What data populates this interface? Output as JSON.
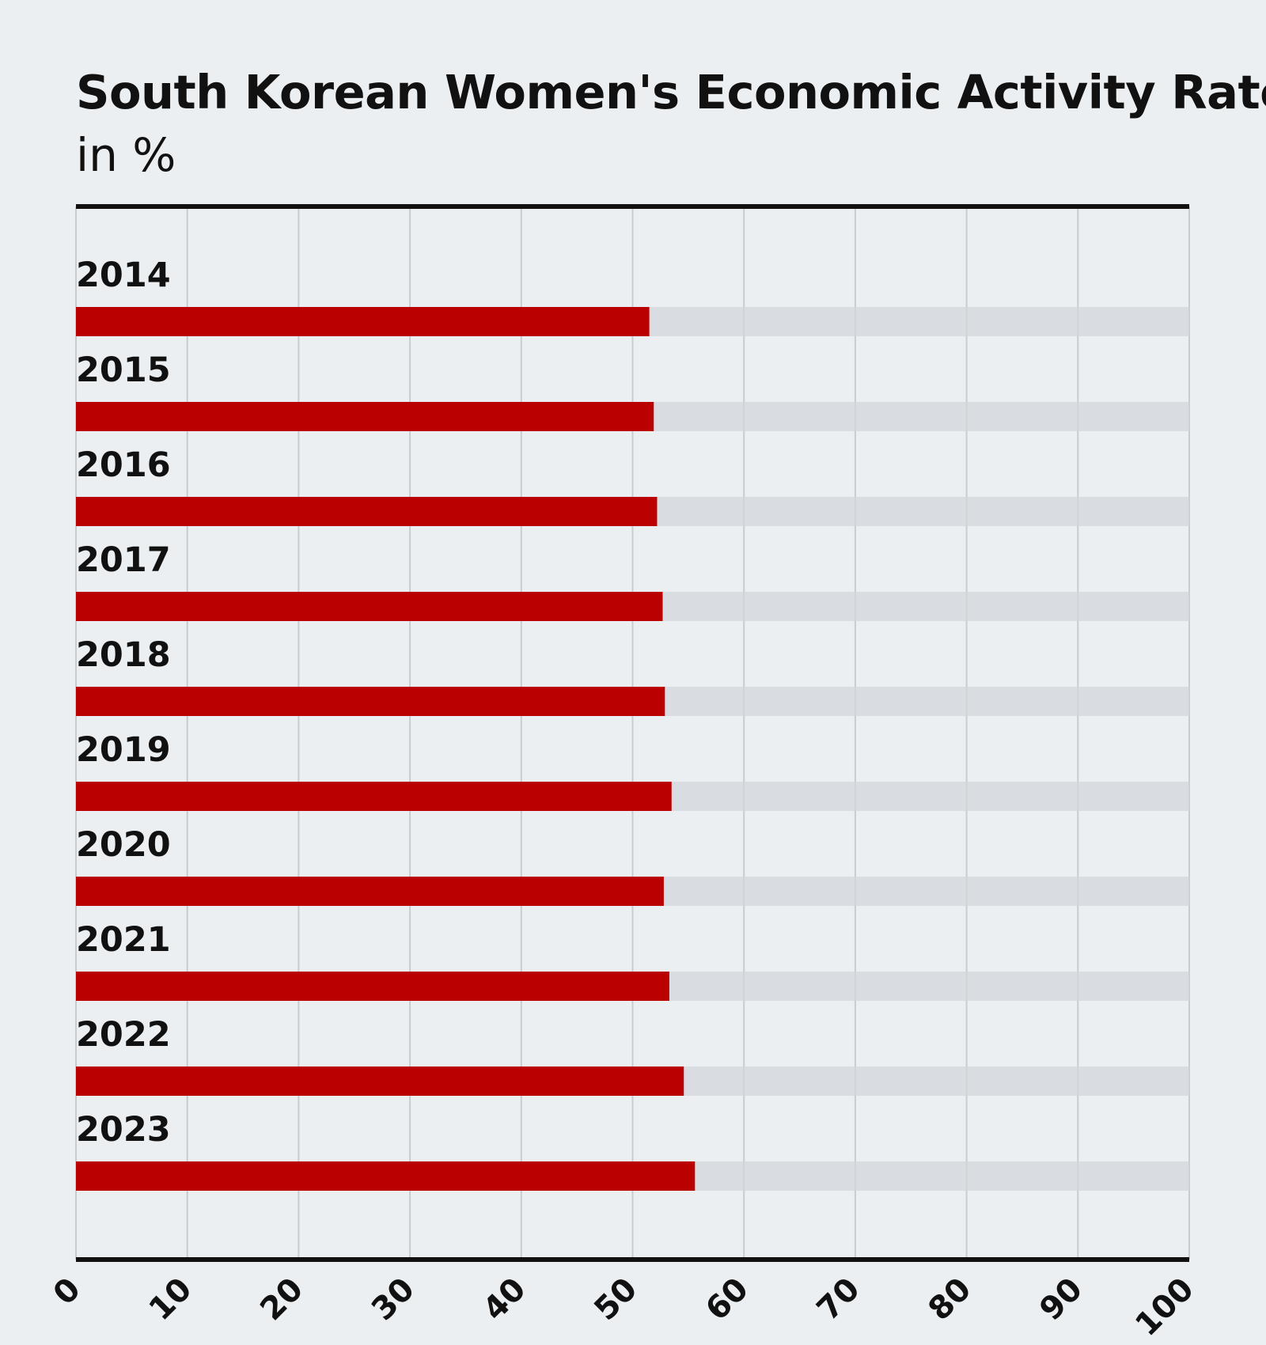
{
  "title": "South Korean Women's Economic Activity Rate",
  "subtitle": "in %",
  "colors": {
    "background": "#eceff1",
    "bar": "#bb0000",
    "track": "#d3d6d9",
    "grid": "#c9ccce",
    "axis_rule": "#111111",
    "text": "#111111"
  },
  "chart_data": {
    "type": "bar",
    "orientation": "horizontal",
    "categories": [
      "2014",
      "2015",
      "2016",
      "2017",
      "2018",
      "2019",
      "2020",
      "2021",
      "2022",
      "2023"
    ],
    "values": [
      51.5,
      51.9,
      52.2,
      52.7,
      52.9,
      53.5,
      52.8,
      53.3,
      54.6,
      55.6
    ],
    "xlim": [
      0,
      100
    ],
    "x_ticks": [
      "0",
      "10",
      "20",
      "30",
      "40",
      "50",
      "60",
      "70",
      "80",
      "90",
      "100"
    ],
    "grid": true,
    "xlabel": "",
    "ylabel": ""
  }
}
